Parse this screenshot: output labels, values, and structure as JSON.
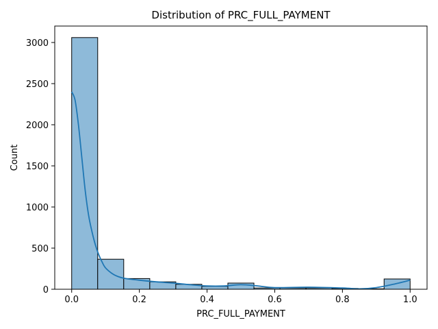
{
  "chart_data": {
    "type": "histogram",
    "title": "Distribution of PRC_FULL_PAYMENT",
    "xlabel": "PRC_FULL_PAYMENT",
    "ylabel": "Count",
    "xlim": [
      -0.05,
      1.05
    ],
    "ylim": [
      0,
      3200
    ],
    "xticks": [
      0.0,
      0.2,
      0.4,
      0.6,
      0.8,
      1.0
    ],
    "xtick_labels": [
      "0.0",
      "0.2",
      "0.4",
      "0.6",
      "0.8",
      "1.0"
    ],
    "yticks": [
      0,
      500,
      1000,
      1500,
      2000,
      2500,
      3000
    ],
    "ytick_labels": [
      "0",
      "500",
      "1000",
      "1500",
      "2000",
      "2500",
      "3000"
    ],
    "bins": [
      {
        "x0": 0.0,
        "x1": 0.0769,
        "count": 3060
      },
      {
        "x0": 0.0769,
        "x1": 0.1538,
        "count": 365
      },
      {
        "x0": 0.1538,
        "x1": 0.2308,
        "count": 130
      },
      {
        "x0": 0.2308,
        "x1": 0.3077,
        "count": 90
      },
      {
        "x0": 0.3077,
        "x1": 0.3846,
        "count": 60
      },
      {
        "x0": 0.3846,
        "x1": 0.4615,
        "count": 35
      },
      {
        "x0": 0.4615,
        "x1": 0.5385,
        "count": 75
      },
      {
        "x0": 0.5385,
        "x1": 0.6154,
        "count": 15
      },
      {
        "x0": 0.6154,
        "x1": 0.6923,
        "count": 15
      },
      {
        "x0": 0.6923,
        "x1": 0.7692,
        "count": 15
      },
      {
        "x0": 0.7692,
        "x1": 0.8462,
        "count": 10
      },
      {
        "x0": 0.8462,
        "x1": 0.9231,
        "count": 5
      },
      {
        "x0": 0.9231,
        "x1": 1.0,
        "count": 125
      }
    ],
    "kde": {
      "x": [
        0.0,
        0.01,
        0.02,
        0.03,
        0.04,
        0.05,
        0.06,
        0.07,
        0.08,
        0.09,
        0.1,
        0.12,
        0.14,
        0.16,
        0.2,
        0.25,
        0.3,
        0.35,
        0.4,
        0.45,
        0.5,
        0.55,
        0.6,
        0.7,
        0.8,
        0.85,
        0.9,
        0.95,
        1.0
      ],
      "y": [
        2400,
        2300,
        2000,
        1600,
        1200,
        900,
        700,
        540,
        420,
        330,
        260,
        190,
        150,
        130,
        110,
        90,
        75,
        55,
        40,
        40,
        55,
        40,
        20,
        25,
        15,
        5,
        20,
        60,
        110
      ]
    },
    "bar_color": "#8ebad9",
    "bar_edge_color": "#000000",
    "kde_color": "#1f77b4",
    "grid": false,
    "legend": "none"
  }
}
